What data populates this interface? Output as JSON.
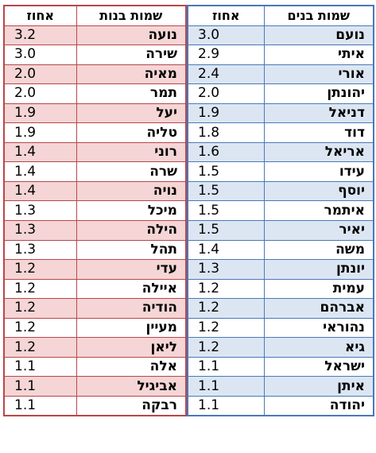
{
  "boys": {
    "header_name": "שמות בנים",
    "header_pct": "אחוז",
    "rows": [
      {
        "name": "נועם",
        "pct": "3.0"
      },
      {
        "name": "איתי",
        "pct": "2.9"
      },
      {
        "name": "אורי",
        "pct": "2.4"
      },
      {
        "name": "יהונתן",
        "pct": "2.0"
      },
      {
        "name": "דניאל",
        "pct": "1.9"
      },
      {
        "name": "דוד",
        "pct": "1.8"
      },
      {
        "name": "אריאל",
        "pct": "1.6"
      },
      {
        "name": "עידו",
        "pct": "1.5"
      },
      {
        "name": "יוסף",
        "pct": "1.5"
      },
      {
        "name": "איתמר",
        "pct": "1.5"
      },
      {
        "name": "יאיר",
        "pct": "1.5"
      },
      {
        "name": "משה",
        "pct": "1.4"
      },
      {
        "name": "יונתן",
        "pct": "1.3"
      },
      {
        "name": "עמית",
        "pct": "1.2"
      },
      {
        "name": "אברהם",
        "pct": "1.2"
      },
      {
        "name": "נהוראי",
        "pct": "1.2"
      },
      {
        "name": "גיא",
        "pct": "1.2"
      },
      {
        "name": "ישראל",
        "pct": "1.1"
      },
      {
        "name": "איתן",
        "pct": "1.1"
      },
      {
        "name": "יהודה",
        "pct": "1.1"
      }
    ]
  },
  "girls": {
    "header_name": "שמות בנות",
    "header_pct": "אחוז",
    "rows": [
      {
        "name": "נועה",
        "pct": "3.2"
      },
      {
        "name": "שירה",
        "pct": "3.0"
      },
      {
        "name": "מאיה",
        "pct": "2.0"
      },
      {
        "name": "תמר",
        "pct": "2.0"
      },
      {
        "name": "יעל",
        "pct": "1.9"
      },
      {
        "name": "טליה",
        "pct": "1.9"
      },
      {
        "name": "רוני",
        "pct": "1.4"
      },
      {
        "name": "שרה",
        "pct": "1.4"
      },
      {
        "name": "נויה",
        "pct": "1.4"
      },
      {
        "name": "מיכל",
        "pct": "1.3"
      },
      {
        "name": "הילה",
        "pct": "1.3"
      },
      {
        "name": "תהל",
        "pct": "1.3"
      },
      {
        "name": "עדי",
        "pct": "1.2"
      },
      {
        "name": "איילה",
        "pct": "1.2"
      },
      {
        "name": "הודיה",
        "pct": "1.2"
      },
      {
        "name": "מעיין",
        "pct": "1.2"
      },
      {
        "name": "ליאן",
        "pct": "1.2"
      },
      {
        "name": "אלה",
        "pct": "1.1"
      },
      {
        "name": "אביגיל",
        "pct": "1.1"
      },
      {
        "name": "רבקה",
        "pct": "1.1"
      }
    ]
  },
  "colors": {
    "boys_border": "#4a78b8",
    "boys_stripe": "#dce6f3",
    "girls_border": "#b8474b",
    "girls_stripe": "#f5d5d5"
  }
}
